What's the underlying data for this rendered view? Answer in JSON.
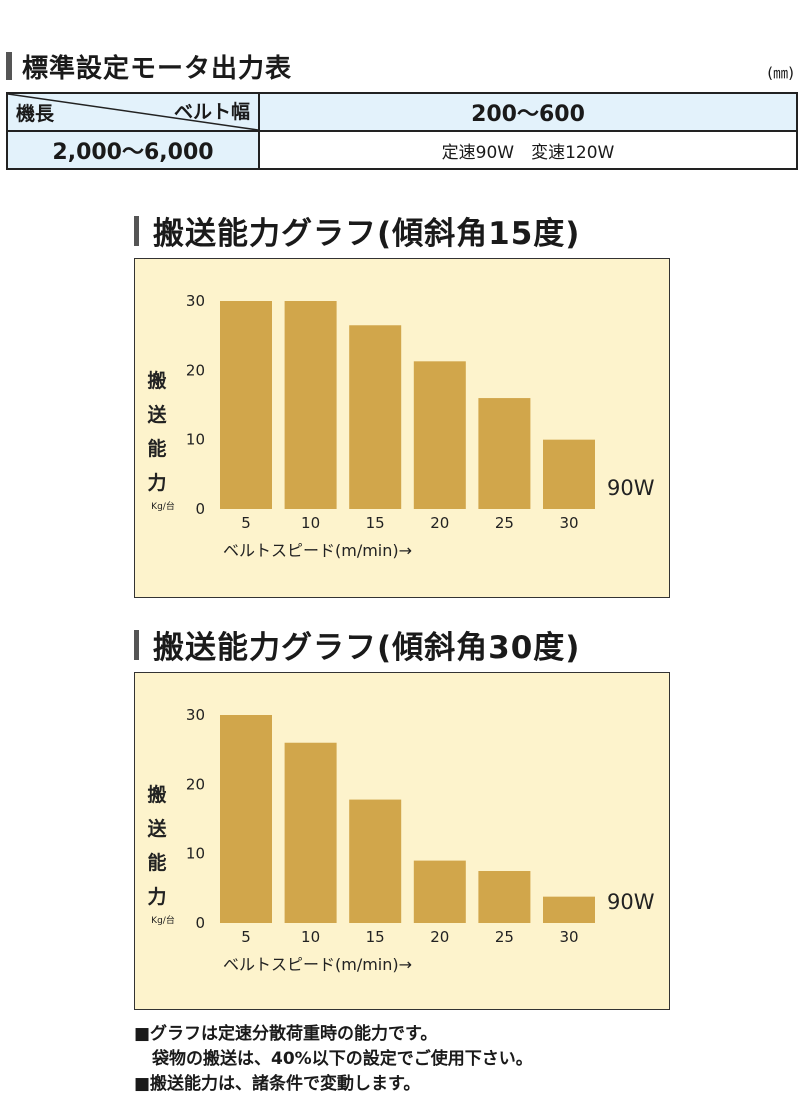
{
  "header": {
    "title": "標準設定モータ出力表",
    "unit": "(㎜)"
  },
  "motor_table": {
    "row_header": "機長",
    "col_header": "ベルト幅",
    "width_range": "200～600",
    "length_range": "2,000～6,000",
    "motors": "定速90W　変速120W"
  },
  "chart_data": [
    {
      "type": "bar",
      "title": "搬送能力グラフ(傾斜角15度)",
      "categories": [
        "5",
        "10",
        "15",
        "20",
        "25",
        "30"
      ],
      "values": [
        30,
        30,
        26.5,
        21.3,
        16,
        10
      ],
      "yticks": [
        "0",
        "10",
        "20",
        "30"
      ],
      "ylim": [
        0,
        30
      ],
      "ylabel": "搬送能力",
      "ylabel_chars": [
        "搬",
        "送",
        "能",
        "力"
      ],
      "ylabel_unit": "Kg/台",
      "xlabel": "ベルトスピード(m/min)→",
      "annotation": "90W",
      "bar_color": "#d1a64b",
      "background": "#fdf3cc"
    },
    {
      "type": "bar",
      "title": "搬送能力グラフ(傾斜角30度)",
      "categories": [
        "5",
        "10",
        "15",
        "20",
        "25",
        "30"
      ],
      "values": [
        30,
        26,
        17.8,
        9,
        7.5,
        3.8
      ],
      "yticks": [
        "0",
        "10",
        "20",
        "30"
      ],
      "ylim": [
        0,
        30
      ],
      "ylabel": "搬送能力",
      "ylabel_chars": [
        "搬",
        "送",
        "能",
        "力"
      ],
      "ylabel_unit": "Kg/台",
      "xlabel": "ベルトスピード(m/min)→",
      "annotation": "90W",
      "bar_color": "#d1a64b",
      "background": "#fdf3cc"
    }
  ],
  "notes": [
    "■グラフは定速分散荷重時の能力です。",
    "袋物の搬送は、40%以下の設定でご使用下さい。",
    "■搬送能力は、諸条件で変動します。"
  ]
}
